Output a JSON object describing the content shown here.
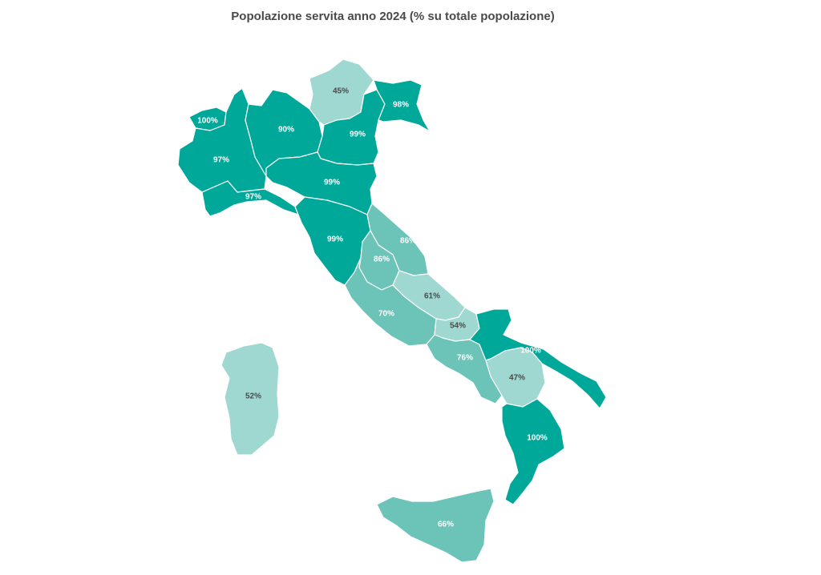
{
  "title": "Popolazione servita anno 2024 (% su totale popolazione)",
  "colors": {
    "high": "#00a89a",
    "mid": "#6cc4b9",
    "low": "#9ed8d0",
    "label_light": "#ffffff",
    "label_dark": "#4a4a4a"
  },
  "regions": [
    {
      "id": "valle-d-aosta",
      "value": "100%",
      "tone": "high"
    },
    {
      "id": "piemonte",
      "value": "97%",
      "tone": "high"
    },
    {
      "id": "liguria",
      "value": "97%",
      "tone": "high"
    },
    {
      "id": "lombardia",
      "value": "90%",
      "tone": "high"
    },
    {
      "id": "trentino-alto-adige",
      "value": "45%",
      "tone": "low"
    },
    {
      "id": "veneto",
      "value": "99%",
      "tone": "high"
    },
    {
      "id": "friuli-venezia-giulia",
      "value": "98%",
      "tone": "high"
    },
    {
      "id": "emilia-romagna",
      "value": "99%",
      "tone": "high"
    },
    {
      "id": "toscana",
      "value": "99%",
      "tone": "high"
    },
    {
      "id": "marche",
      "value": "86%",
      "tone": "mid"
    },
    {
      "id": "umbria",
      "value": "86%",
      "tone": "mid"
    },
    {
      "id": "lazio",
      "value": "70%",
      "tone": "mid"
    },
    {
      "id": "abruzzo",
      "value": "61%",
      "tone": "low"
    },
    {
      "id": "molise",
      "value": "54%",
      "tone": "low"
    },
    {
      "id": "campania",
      "value": "76%",
      "tone": "mid"
    },
    {
      "id": "puglia",
      "value": "100%",
      "tone": "high"
    },
    {
      "id": "basilicata",
      "value": "47%",
      "tone": "low"
    },
    {
      "id": "calabria",
      "value": "100%",
      "tone": "high"
    },
    {
      "id": "sicilia",
      "value": "66%",
      "tone": "mid"
    },
    {
      "id": "sardegna",
      "value": "52%",
      "tone": "low"
    }
  ]
}
